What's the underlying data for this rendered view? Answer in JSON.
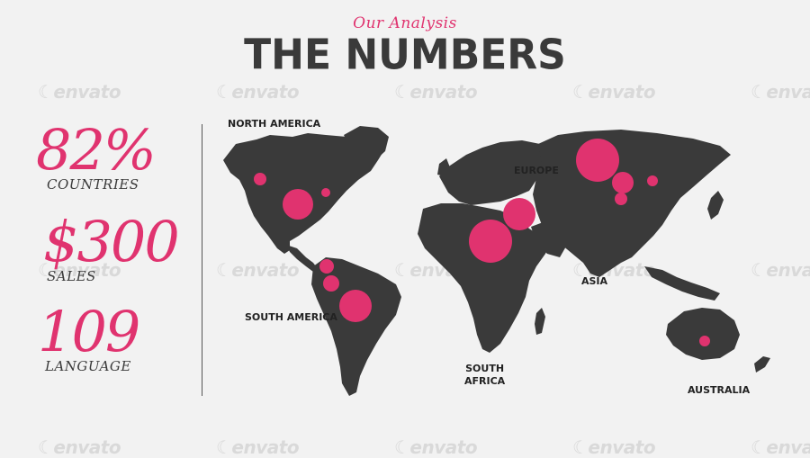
{
  "header": {
    "subtitle": "Our Analysis",
    "title": "THE NUMBERS"
  },
  "stats": [
    {
      "value": "82%",
      "label": "COUNTRIES"
    },
    {
      "value": "$300",
      "label": "SALES"
    },
    {
      "value": "109",
      "label": "LANGUAGE"
    }
  ],
  "map": {
    "regions": {
      "north_america": "NORTH AMERICA",
      "south_america": "SOUTH AMERICA",
      "europe": "EUROPE",
      "asia": "ASIA",
      "south_africa_line1": "SOUTH",
      "south_africa_line2": "AFRICA",
      "australia": "AUSTRALIA"
    }
  },
  "watermark": {
    "text": "envato"
  },
  "colors": {
    "accent": "#e0336f",
    "land": "#3a3a3a",
    "background": "#f2f2f2",
    "title": "#3a3a3a"
  }
}
